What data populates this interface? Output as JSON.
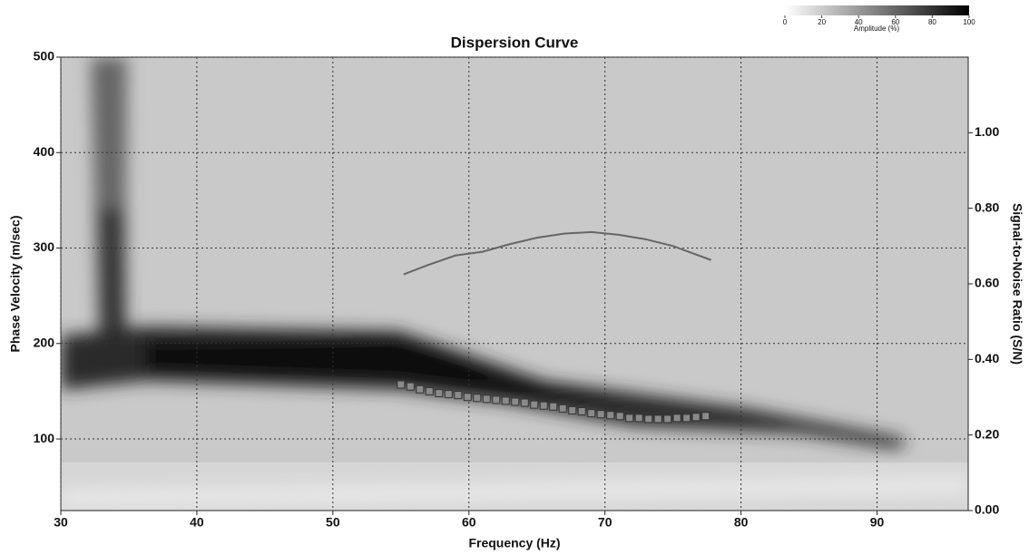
{
  "chart_data": {
    "type": "line",
    "title": "Dispersion Curve",
    "x_label": "Frequency (Hz)",
    "y_label": "Phase Velocity (m/sec)",
    "y2_label": "Signal-to-Noise Ratio (S/N)",
    "xlim": [
      30,
      96.7
    ],
    "xticks": [
      30,
      40,
      50,
      60,
      70,
      80,
      90
    ],
    "ylim": [
      25,
      500
    ],
    "yticks": [
      100,
      200,
      300,
      400,
      500
    ],
    "y2lim": [
      0,
      1.2
    ],
    "y2ticks": [
      {
        "value": 0,
        "label": "0.00"
      },
      {
        "value": 0.2,
        "label": "0.20"
      },
      {
        "value": 0.4,
        "label": "0.40"
      },
      {
        "value": 0.6,
        "label": "0.60"
      },
      {
        "value": 0.8,
        "label": "0.80"
      },
      {
        "value": 1.0,
        "label": "1.00"
      }
    ],
    "grid": true,
    "series": [
      {
        "axis": "y2",
        "color": "#666666",
        "marker": "none",
        "x": [
          55.2,
          57,
          59,
          61,
          63,
          65,
          67,
          69,
          71,
          73,
          75,
          77.8
        ],
        "values": [
          0.625,
          0.65,
          0.675,
          0.685,
          0.705,
          0.722,
          0.733,
          0.737,
          0.73,
          0.718,
          0.7,
          0.663
        ]
      },
      {
        "axis": "y",
        "color": "#8a8a8a",
        "marker": "square",
        "x": [
          55.0,
          55.7,
          56.4,
          57.1,
          57.8,
          58.5,
          59.2,
          59.9,
          60.6,
          61.3,
          62.0,
          62.7,
          63.4,
          64.1,
          64.8,
          65.5,
          66.2,
          66.9,
          67.6,
          68.3,
          69.0,
          69.7,
          70.4,
          71.1,
          71.8,
          72.5,
          73.2,
          73.9,
          74.6,
          75.3,
          76.0,
          76.7,
          77.4
        ],
        "values": [
          157,
          155,
          152,
          150,
          148,
          147,
          146,
          144,
          143,
          142,
          141,
          140,
          139,
          138,
          136,
          135,
          134,
          132,
          130,
          129,
          127,
          126,
          125,
          124,
          122,
          122,
          121,
          121,
          121,
          122,
          122,
          123,
          124
        ]
      }
    ],
    "colorbar": {
      "label": "Amplitude (%)",
      "lim": [
        0,
        100
      ],
      "ticks": [
        0,
        20,
        40,
        60,
        80,
        100
      ]
    }
  }
}
